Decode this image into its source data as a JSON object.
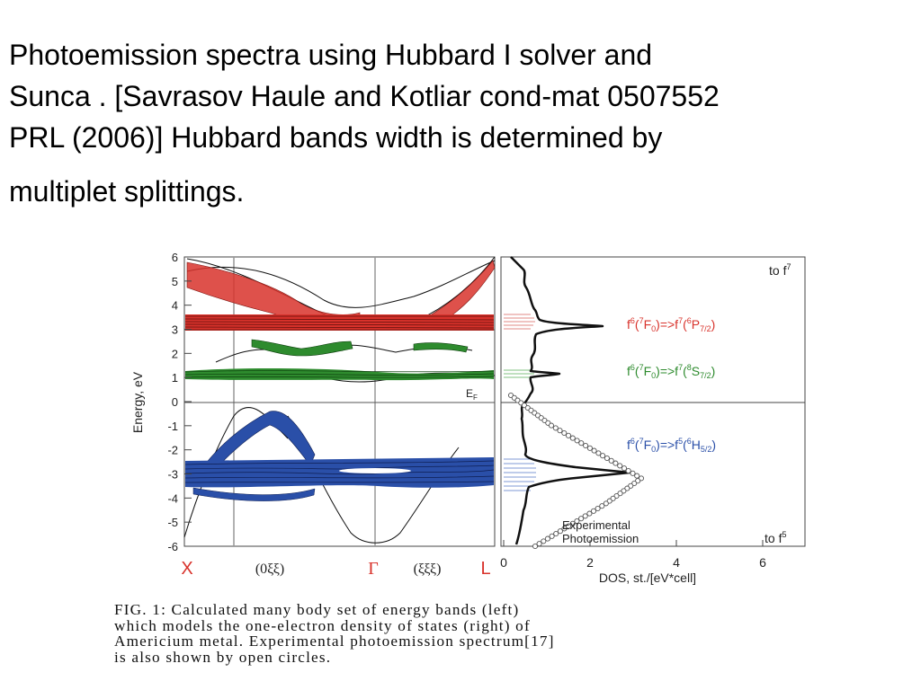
{
  "title": {
    "line1": "Photoemission spectra using Hubbard I solver  and",
    "line2": "Sunca . [Savrasov Haule and Kotliar cond-mat 0507552",
    "line3": "PRL (2006)]  Hubbard bands width is determined  by",
    "line4": "multiplet splittings."
  },
  "figure": {
    "bands_panel": {
      "y_axis_label": "Energy, eV",
      "y_ticks": [
        "6",
        "5",
        "4",
        "3",
        "2",
        "1",
        "0",
        "-1",
        "-2",
        "-3",
        "-4",
        "-5",
        "-6"
      ],
      "fermi_label": "E",
      "fermi_sub": "F",
      "k_labels": {
        "x": "X",
        "delta": "(0ξξ)",
        "gamma": "Γ",
        "lambda": "(ξξξ)",
        "l": "L"
      },
      "band_colors": {
        "upper_f7": "#d8322b",
        "middle_f7": "#2e8b2e",
        "lower_f5": "#2a4fa8"
      }
    },
    "dos_panel": {
      "x_label": "DOS, st./[eV*cell]",
      "x_ticks": [
        "0",
        "2",
        "4",
        "6"
      ],
      "top_label": "to f",
      "top_label_sup": "7",
      "bottom_label": "to f",
      "bottom_label_sup": "5",
      "experimental_label_1": "Experimental",
      "experimental_label_2": "Photoemission",
      "transitions": [
        {
          "a": "f",
          "b": "6",
          "c": "(",
          "d": "7",
          "e": "F",
          "f": "0",
          "g": ")=>f",
          "h": "7",
          "i": "(",
          "j": "6",
          "k": "P",
          "l": "7/2",
          "m": ")",
          "color": "#d8322b"
        },
        {
          "a": "f",
          "b": "6",
          "c": "(",
          "d": "7",
          "e": "F",
          "f": "0",
          "g": ")=>f",
          "h": "7",
          "i": "(",
          "j": "8",
          "k": "S",
          "l": "7/2",
          "m": ")",
          "color": "#2e8b2e"
        },
        {
          "a": "f",
          "b": "6",
          "c": "(",
          "d": "7",
          "e": "F",
          "f": "0",
          "g": ")=>f",
          "h": "5",
          "i": "(",
          "j": "6",
          "k": "H",
          "l": "5/2",
          "m": ")",
          "color": "#2a4fa8"
        }
      ]
    }
  },
  "caption": {
    "line1": "FIG. 1:  Calculated  many  body  set  of  energy  bands  (left)",
    "line2": "which  models  the  one-electron  density  of  states  (right)  of",
    "line3": "Americium metal.  Experimental photoemission spectrum[17]",
    "line4": "is also shown by open circles."
  }
}
